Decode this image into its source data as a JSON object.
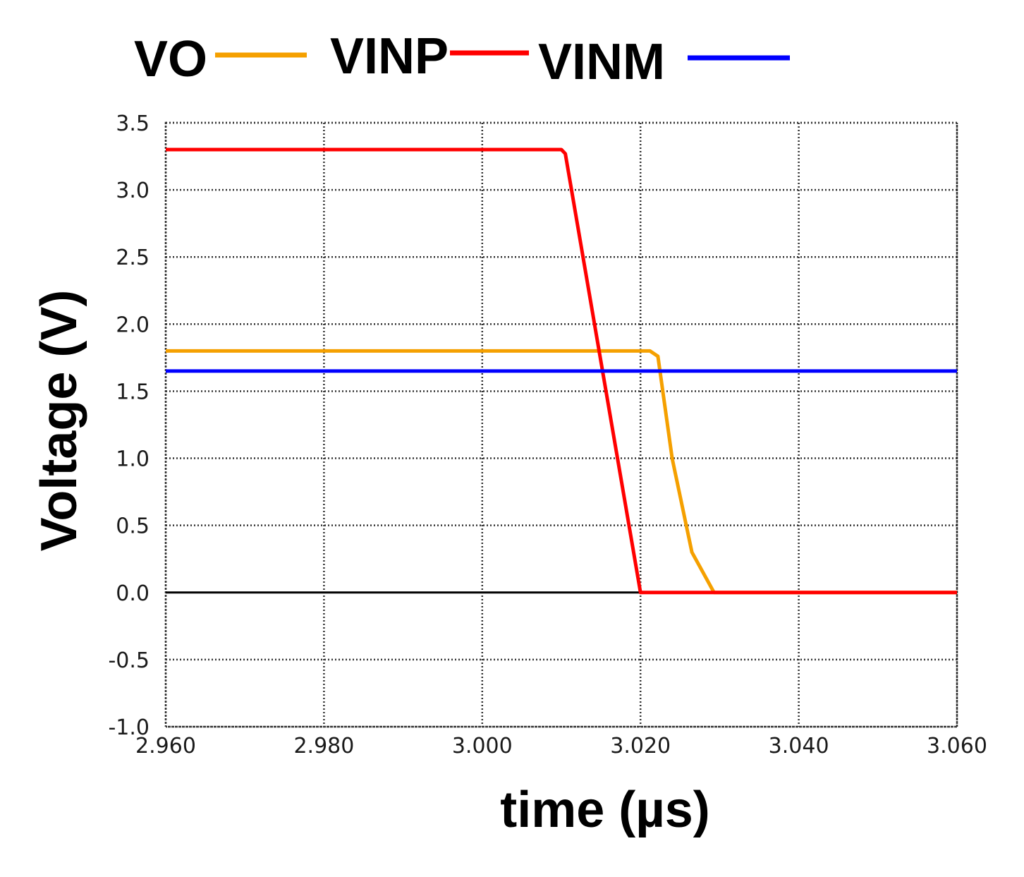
{
  "chart_data": {
    "type": "line",
    "title": "",
    "xlabel": "time (µs)",
    "ylabel": "Voltage  (V)",
    "xlim": [
      2.96,
      3.06
    ],
    "ylim": [
      -1.0,
      3.5
    ],
    "xticks": [
      2.96,
      2.98,
      3.0,
      3.02,
      3.04,
      3.06
    ],
    "xtick_labels": [
      "2.960",
      "2.980",
      "3.000",
      "3.020",
      "3.040",
      "3.060"
    ],
    "yticks": [
      3.5,
      3.0,
      2.5,
      2.0,
      1.5,
      1.0,
      0.5,
      0.0,
      -0.5,
      -1.0
    ],
    "ytick_labels": [
      "3.5",
      "3.0",
      "2.5",
      "2.0",
      "1.5",
      "1.0",
      "0.5",
      "0.0",
      "-0.5",
      "-1.0"
    ],
    "grid": true,
    "legend_position": "top",
    "baseline": {
      "y": 0.0,
      "color": "#000000"
    },
    "series": [
      {
        "name": "VO",
        "color": "#f5a000",
        "x": [
          2.96,
          3.0212,
          3.0222,
          3.024,
          3.0265,
          3.0293,
          3.06
        ],
        "y": [
          1.8,
          1.8,
          1.76,
          1.0,
          0.3,
          0.0,
          0.0
        ]
      },
      {
        "name": "VINP",
        "color": "#ff0000",
        "x": [
          2.96,
          3.01,
          3.0105,
          3.02,
          3.06
        ],
        "y": [
          3.3,
          3.3,
          3.27,
          0.0,
          0.0
        ]
      },
      {
        "name": "VINM",
        "color": "#0000ff",
        "x": [
          2.96,
          3.06
        ],
        "y": [
          1.65,
          1.65
        ]
      }
    ]
  }
}
